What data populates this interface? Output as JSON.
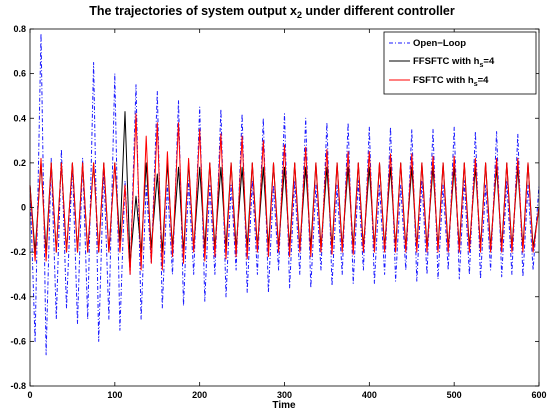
{
  "chart_data": {
    "type": "line",
    "title_parts": [
      "The trajectories of system output x",
      "2",
      " under different controller"
    ],
    "xlabel": "Time",
    "ylabel": "",
    "xlim": [
      0,
      600
    ],
    "ylim": [
      -0.8,
      0.8
    ],
    "xticks": [
      0,
      100,
      200,
      300,
      400,
      500,
      600
    ],
    "yticks": [
      -0.8,
      -0.6,
      -0.4,
      -0.2,
      0,
      0.2,
      0.4,
      0.6,
      0.8
    ],
    "grid": false,
    "legend_position": "top-right",
    "series": [
      {
        "name_parts": [
          "Open−Loop"
        ],
        "color": "#1a1aff",
        "style": "dash-dot",
        "x": [
          0,
          6,
          13,
          19,
          25,
          31,
          37,
          43,
          50,
          56,
          62,
          68,
          75,
          81,
          87,
          93,
          100,
          106,
          112,
          118,
          125,
          131,
          137,
          143,
          150,
          156,
          162,
          168,
          175,
          181,
          187,
          193,
          200,
          206,
          212,
          218,
          225,
          231,
          237,
          243,
          250,
          256,
          262,
          268,
          275,
          281,
          287,
          293,
          300,
          306,
          312,
          318,
          325,
          331,
          337,
          343,
          350,
          356,
          362,
          368,
          375,
          381,
          387,
          393,
          400,
          406,
          412,
          418,
          425,
          431,
          437,
          443,
          450,
          456,
          462,
          468,
          475,
          481,
          487,
          493,
          500,
          506,
          512,
          518,
          525,
          531,
          537,
          543,
          550,
          556,
          562,
          568,
          575,
          581,
          587,
          593,
          600
        ],
        "y": [
          0.1,
          -0.6,
          0.78,
          -0.66,
          0.22,
          -0.5,
          0.26,
          -0.45,
          0.2,
          -0.52,
          0.22,
          -0.5,
          0.65,
          -0.6,
          0.18,
          -0.5,
          0.6,
          -0.55,
          0.12,
          -0.3,
          0.55,
          -0.5,
          0.1,
          -0.25,
          0.52,
          -0.45,
          0.1,
          -0.3,
          0.48,
          -0.44,
          0.12,
          -0.3,
          0.45,
          -0.42,
          0.1,
          -0.3,
          0.44,
          -0.4,
          0.1,
          -0.28,
          0.42,
          -0.38,
          0.12,
          -0.3,
          0.4,
          -0.38,
          0.1,
          -0.28,
          0.42,
          -0.36,
          0.12,
          -0.3,
          0.4,
          -0.36,
          0.1,
          -0.28,
          0.38,
          -0.35,
          0.1,
          -0.3,
          0.38,
          -0.34,
          0.12,
          -0.28,
          0.36,
          -0.34,
          0.1,
          -0.3,
          0.36,
          -0.33,
          0.1,
          -0.28,
          0.35,
          -0.33,
          0.12,
          -0.3,
          0.35,
          -0.32,
          0.1,
          -0.28,
          0.36,
          -0.32,
          0.12,
          -0.3,
          0.34,
          -0.32,
          0.1,
          -0.28,
          0.34,
          -0.31,
          0.12,
          -0.3,
          0.33,
          -0.31,
          0.1,
          -0.28,
          0.1
        ]
      },
      {
        "name_parts": [
          "FFSFTC with h",
          "s",
          "=4"
        ],
        "color": "#000000",
        "style": "solid",
        "x": [
          0,
          6,
          13,
          19,
          25,
          31,
          37,
          43,
          50,
          56,
          62,
          68,
          75,
          81,
          87,
          93,
          100,
          106,
          112,
          118,
          125,
          131,
          137,
          143,
          150,
          156,
          162,
          168,
          175,
          181,
          187,
          193,
          200,
          206,
          212,
          218,
          225,
          231,
          237,
          243,
          250,
          256,
          262,
          268,
          275,
          281,
          287,
          293,
          300,
          306,
          312,
          318,
          325,
          331,
          337,
          343,
          350,
          356,
          362,
          368,
          375,
          381,
          387,
          393,
          400,
          406,
          412,
          418,
          425,
          431,
          437,
          443,
          450,
          456,
          462,
          468,
          475,
          481,
          487,
          493,
          500,
          506,
          512,
          518,
          525,
          531,
          537,
          543,
          550,
          556,
          562,
          568,
          575,
          581,
          587,
          593,
          600
        ],
        "y": [
          0.1,
          -0.2,
          0.2,
          -0.2,
          0.2,
          -0.2,
          0.2,
          -0.2,
          0.2,
          -0.2,
          0.2,
          -0.2,
          0.2,
          -0.2,
          0.2,
          -0.2,
          0.2,
          -0.15,
          0.43,
          -0.25,
          0.05,
          -0.2,
          0.2,
          -0.18,
          0.15,
          -0.2,
          0.2,
          -0.18,
          0.18,
          -0.2,
          0.2,
          -0.18,
          0.18,
          -0.18,
          0.2,
          -0.18,
          0.18,
          -0.18,
          0.2,
          -0.18,
          0.18,
          -0.18,
          0.2,
          -0.18,
          0.18,
          -0.18,
          0.2,
          -0.18,
          0.18,
          -0.18,
          0.2,
          -0.18,
          0.18,
          -0.18,
          0.2,
          -0.18,
          0.18,
          -0.18,
          0.2,
          -0.18,
          0.18,
          -0.18,
          0.2,
          -0.18,
          0.18,
          -0.18,
          0.2,
          -0.18,
          0.18,
          -0.18,
          0.2,
          -0.18,
          0.18,
          -0.18,
          0.2,
          -0.18,
          0.18,
          -0.18,
          0.2,
          -0.18,
          0.18,
          -0.18,
          0.2,
          -0.18,
          0.18,
          -0.18,
          0.2,
          -0.18,
          0.18,
          -0.18,
          0.2,
          -0.18,
          0.18,
          -0.18,
          0.2,
          -0.18,
          0.0
        ]
      },
      {
        "name_parts": [
          "FSFTC with h",
          "s",
          "=4"
        ],
        "color": "#ff0000",
        "style": "solid",
        "x": [
          0,
          6,
          13,
          19,
          25,
          31,
          37,
          43,
          50,
          56,
          62,
          68,
          75,
          81,
          87,
          93,
          100,
          106,
          112,
          118,
          125,
          131,
          137,
          143,
          150,
          156,
          162,
          168,
          175,
          181,
          187,
          193,
          200,
          206,
          212,
          218,
          225,
          231,
          237,
          243,
          250,
          256,
          262,
          268,
          275,
          281,
          287,
          293,
          300,
          306,
          312,
          318,
          325,
          331,
          337,
          343,
          350,
          356,
          362,
          368,
          375,
          381,
          387,
          393,
          400,
          406,
          412,
          418,
          425,
          431,
          437,
          443,
          450,
          456,
          462,
          468,
          475,
          481,
          487,
          493,
          500,
          506,
          512,
          518,
          525,
          531,
          537,
          543,
          550,
          556,
          562,
          568,
          575,
          581,
          587,
          593,
          600
        ],
        "y": [
          0.1,
          -0.24,
          0.22,
          -0.24,
          0.2,
          -0.2,
          0.2,
          -0.2,
          0.2,
          -0.2,
          0.2,
          -0.2,
          0.2,
          -0.2,
          0.2,
          -0.2,
          0.2,
          -0.2,
          0.1,
          -0.3,
          0.42,
          -0.28,
          0.32,
          -0.25,
          0.38,
          -0.28,
          0.25,
          -0.22,
          0.38,
          -0.25,
          0.22,
          -0.2,
          0.35,
          -0.24,
          0.2,
          -0.22,
          0.33,
          -0.23,
          0.2,
          -0.22,
          0.32,
          -0.23,
          0.2,
          -0.2,
          0.3,
          -0.22,
          0.2,
          -0.2,
          0.28,
          -0.22,
          0.2,
          -0.2,
          0.27,
          -0.22,
          0.2,
          -0.2,
          0.26,
          -0.21,
          0.2,
          -0.2,
          0.25,
          -0.21,
          0.2,
          -0.2,
          0.25,
          -0.2,
          0.2,
          -0.2,
          0.24,
          -0.2,
          0.2,
          -0.2,
          0.24,
          -0.2,
          0.2,
          -0.2,
          0.23,
          -0.2,
          0.2,
          -0.2,
          0.23,
          -0.2,
          0.2,
          -0.2,
          0.22,
          -0.2,
          0.2,
          -0.2,
          0.22,
          -0.2,
          0.2,
          -0.2,
          0.22,
          -0.2,
          0.2,
          -0.2,
          0.0
        ]
      }
    ]
  }
}
